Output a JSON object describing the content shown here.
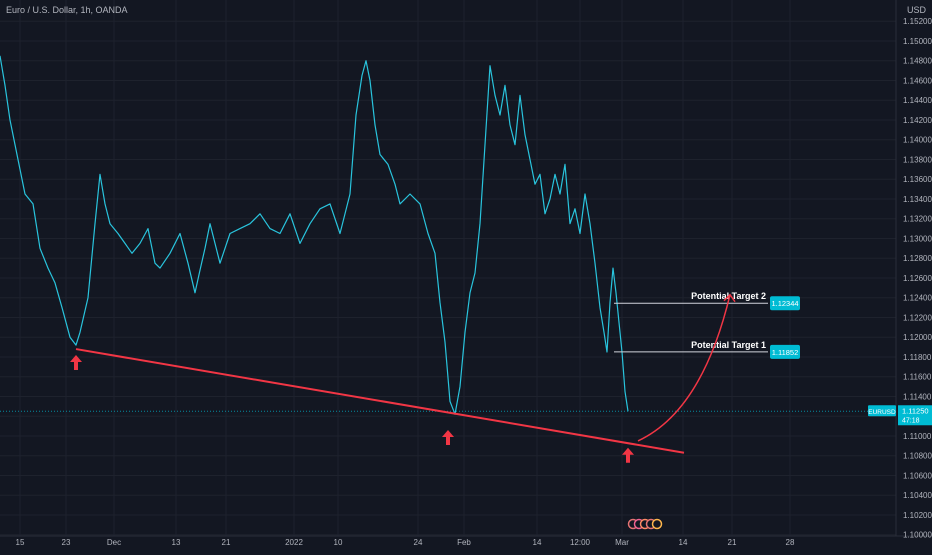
{
  "header": {
    "symbol_line": "Euro / U.S. Dollar, 1h, OANDA",
    "currency": "USD"
  },
  "colors": {
    "background": "#131722",
    "price_line": "#29c4dd",
    "trendline": "#f23645",
    "arrow": "#f23645",
    "label_bg": "#00bcd4",
    "grid": "#1e222d",
    "axis_text": "#b2b5be"
  },
  "icons": [
    "up-arrow-icon",
    "curved-arrow-icon",
    "event-markers-icon"
  ],
  "chart_data": {
    "type": "line",
    "title": "Euro / U.S. Dollar, 1h, OANDA",
    "series": [
      {
        "name": "EURUSD",
        "x": [
          0,
          5,
          10,
          18,
          25,
          33,
          40,
          48,
          55,
          62,
          70,
          76,
          80,
          88,
          95,
          100,
          105,
          110,
          118,
          125,
          132,
          140,
          148,
          155,
          160,
          170,
          180,
          188,
          195,
          200,
          205,
          210,
          215,
          220,
          230,
          240,
          250,
          260,
          270,
          280,
          290,
          300,
          310,
          320,
          330,
          340,
          350,
          356,
          362,
          366,
          370,
          375,
          380,
          388,
          395,
          400,
          410,
          420,
          428,
          435,
          440,
          445,
          450,
          455,
          460,
          465,
          470,
          475,
          480,
          485,
          490,
          495,
          500,
          505,
          510,
          515,
          520,
          525,
          530,
          535,
          540,
          545,
          550,
          555,
          560,
          565,
          570,
          575,
          580,
          585,
          590,
          595,
          600,
          604,
          607,
          610,
          613,
          616,
          619,
          622,
          625,
          628
        ],
        "y": [
          1.1485,
          1.1455,
          1.142,
          1.138,
          1.1345,
          1.1335,
          1.129,
          1.127,
          1.1255,
          1.123,
          1.12,
          1.1192,
          1.1205,
          1.124,
          1.1315,
          1.1365,
          1.1335,
          1.1315,
          1.1305,
          1.1295,
          1.1285,
          1.1295,
          1.131,
          1.1275,
          1.127,
          1.1285,
          1.1305,
          1.1275,
          1.1245,
          1.1268,
          1.129,
          1.1315,
          1.1295,
          1.1275,
          1.1305,
          1.131,
          1.1315,
          1.1325,
          1.131,
          1.1305,
          1.1325,
          1.1295,
          1.1315,
          1.133,
          1.1335,
          1.1305,
          1.1345,
          1.1425,
          1.1465,
          1.148,
          1.146,
          1.1415,
          1.1385,
          1.1375,
          1.1355,
          1.1335,
          1.1345,
          1.1335,
          1.1305,
          1.1285,
          1.1235,
          1.1195,
          1.1135,
          1.1122,
          1.115,
          1.1205,
          1.1245,
          1.1265,
          1.1315,
          1.1395,
          1.1475,
          1.1445,
          1.1425,
          1.1455,
          1.1415,
          1.1395,
          1.1445,
          1.1405,
          1.138,
          1.1355,
          1.1365,
          1.1325,
          1.134,
          1.1365,
          1.1345,
          1.1375,
          1.1315,
          1.133,
          1.1305,
          1.1345,
          1.1315,
          1.1275,
          1.123,
          1.1205,
          1.1185,
          1.1235,
          1.127,
          1.1245,
          1.1215,
          1.1185,
          1.1145,
          1.1125
        ]
      }
    ],
    "x_ticks": [
      {
        "x": 20,
        "label": "15"
      },
      {
        "x": 66,
        "label": "23"
      },
      {
        "x": 114,
        "label": "Dec"
      },
      {
        "x": 176,
        "label": "13"
      },
      {
        "x": 226,
        "label": "21"
      },
      {
        "x": 294,
        "label": "2022"
      },
      {
        "x": 338,
        "label": "10"
      },
      {
        "x": 418,
        "label": "24"
      },
      {
        "x": 464,
        "label": "Feb"
      },
      {
        "x": 537,
        "label": "14"
      },
      {
        "x": 580,
        "label": "12:00"
      },
      {
        "x": 622,
        "label": "Mar"
      },
      {
        "x": 683,
        "label": "14"
      },
      {
        "x": 732,
        "label": "21"
      },
      {
        "x": 790,
        "label": "28"
      }
    ],
    "y_ticks": [
      1.152,
      1.15,
      1.148,
      1.146,
      1.144,
      1.142,
      1.14,
      1.138,
      1.136,
      1.134,
      1.132,
      1.13,
      1.128,
      1.126,
      1.124,
      1.122,
      1.12,
      1.118,
      1.116,
      1.114,
      1.112,
      1.11,
      1.108,
      1.106,
      1.104,
      1.102,
      1.1
    ],
    "y_tick_labels": [
      "1.15200",
      "1.15000",
      "1.14800",
      "1.14600",
      "1.14400",
      "1.14200",
      "1.14000",
      "1.13800",
      "1.13600",
      "1.13400",
      "1.13200",
      "1.13000",
      "1.12800",
      "1.12600",
      "1.12400",
      "1.12200",
      "1.12000",
      "1.11800",
      "1.11600",
      "1.11400",
      "1.11200",
      "1.11000",
      "1.10800",
      "1.10600",
      "1.10400",
      "1.10200",
      "1.10000"
    ],
    "ylim": [
      1.09845,
      1.15415
    ],
    "xlim": [
      0,
      900
    ],
    "current_price": {
      "label": "EURUSD",
      "value": 1.1125,
      "value_text": "1.11250",
      "countdown": "47:18"
    },
    "trendline": {
      "x1": 76,
      "y1": 1.1188,
      "x2": 684,
      "y2": 1.1083
    },
    "targets": [
      {
        "label": "Potential Target 2",
        "value": 1.12344,
        "value_text": "1.12344",
        "x1": 614,
        "x2": 768
      },
      {
        "label": "Potential Target 1",
        "value": 1.11852,
        "value_text": "1.11852",
        "x1": 614,
        "x2": 768
      }
    ],
    "support_arrows": [
      {
        "x": 76,
        "value": 1.1182
      },
      {
        "x": 448,
        "value": 1.1106
      },
      {
        "x": 628,
        "value": 1.1088
      }
    ],
    "projection_arrow": {
      "x1": 638,
      "y1": 1.1095,
      "cx": 702,
      "cy": 1.1125,
      "x2": 730,
      "y2": 1.1243
    }
  }
}
